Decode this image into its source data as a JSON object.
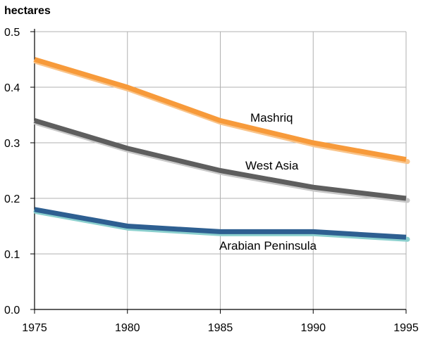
{
  "chart_data": {
    "type": "line",
    "title": "",
    "ylabel": "hectares",
    "xlabel": "",
    "x": [
      1975,
      1980,
      1985,
      1990,
      1995
    ],
    "xlim": [
      1975,
      1995
    ],
    "ylim": [
      0,
      0.5
    ],
    "x_ticks": [
      "1975",
      "1980",
      "1985",
      "1990",
      "1995"
    ],
    "y_ticks": [
      "0.0",
      "0.1",
      "0.2",
      "0.3",
      "0.4",
      "0.5"
    ],
    "grid": true,
    "legend": "none (series labeled inline)",
    "series": [
      {
        "name": "Mashriq",
        "values": [
          0.45,
          0.4,
          0.34,
          0.3,
          0.27
        ],
        "color": "#F79A3A",
        "shadow": "#F9C48A"
      },
      {
        "name": "West Asia",
        "values": [
          0.34,
          0.29,
          0.25,
          0.22,
          0.2
        ],
        "color": "#5E5E5E",
        "shadow": "#C8C8C8"
      },
      {
        "name": "Arabian Peninsula",
        "values": [
          0.18,
          0.15,
          0.14,
          0.14,
          0.13
        ],
        "color": "#2E5F91",
        "shadow": "#8BD0CE"
      }
    ]
  }
}
